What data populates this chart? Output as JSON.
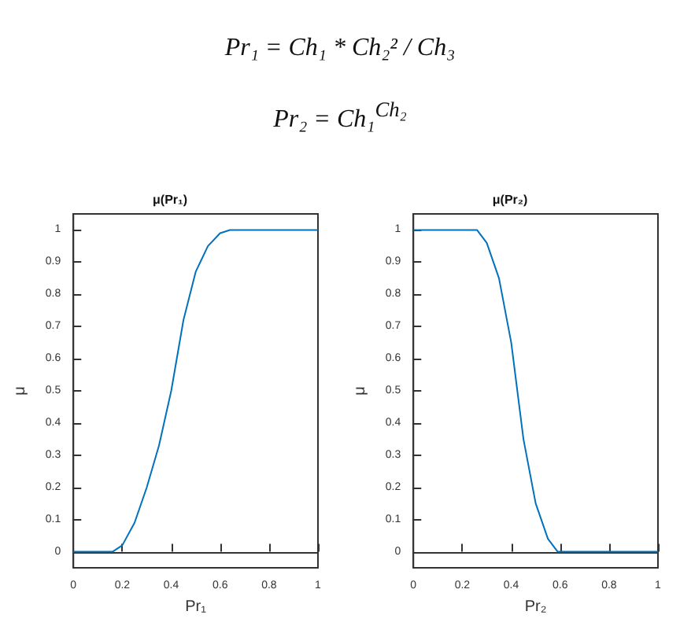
{
  "chart_data": [
    {
      "type": "other",
      "annotations": [
        "Pr₁ = Ch₁ * Ch₂² / Ch₃",
        "Pr₂ = Ch₁$^{Ch₂}$"
      ]
    },
    {
      "type": "line",
      "title": "μ(Pr₁)",
      "xlabel": "Pr₁",
      "ylabel": "μ",
      "xlim": [
        0,
        1
      ],
      "ylim": [
        -0.05,
        1.05
      ],
      "xticks": [
        0,
        0.2,
        0.4,
        0.6,
        0.8,
        1
      ],
      "yticks": [
        0,
        0.1,
        0.2,
        0.3,
        0.4,
        0.5,
        0.6,
        0.7,
        0.8,
        0.9,
        1
      ],
      "marker": "none",
      "line_style": "solid",
      "series": [
        {
          "color": "#0072bd",
          "x": [
            0,
            0.16,
            0.2,
            0.25,
            0.3,
            0.35,
            0.4,
            0.45,
            0.5,
            0.55,
            0.6,
            0.64,
            1
          ],
          "values": [
            0,
            0,
            0.02,
            0.09,
            0.2,
            0.33,
            0.5,
            0.72,
            0.87,
            0.95,
            0.99,
            1,
            1
          ]
        }
      ]
    },
    {
      "type": "line",
      "title": "μ(Pr₂)",
      "xlabel": "Pr₂",
      "ylabel": "μ",
      "xlim": [
        0,
        1
      ],
      "ylim": [
        -0.05,
        1.05
      ],
      "xticks": [
        0,
        0.2,
        0.4,
        0.6,
        0.8,
        1
      ],
      "yticks": [
        0,
        0.1,
        0.2,
        0.3,
        0.4,
        0.5,
        0.6,
        0.7,
        0.8,
        0.9,
        1
      ],
      "marker": "none",
      "line_style": "solid",
      "series": [
        {
          "color": "#0072bd",
          "x": [
            0,
            0.26,
            0.3,
            0.35,
            0.4,
            0.45,
            0.5,
            0.55,
            0.59,
            1
          ],
          "values": [
            1,
            1,
            0.96,
            0.85,
            0.65,
            0.35,
            0.15,
            0.04,
            0,
            0
          ]
        }
      ]
    }
  ]
}
